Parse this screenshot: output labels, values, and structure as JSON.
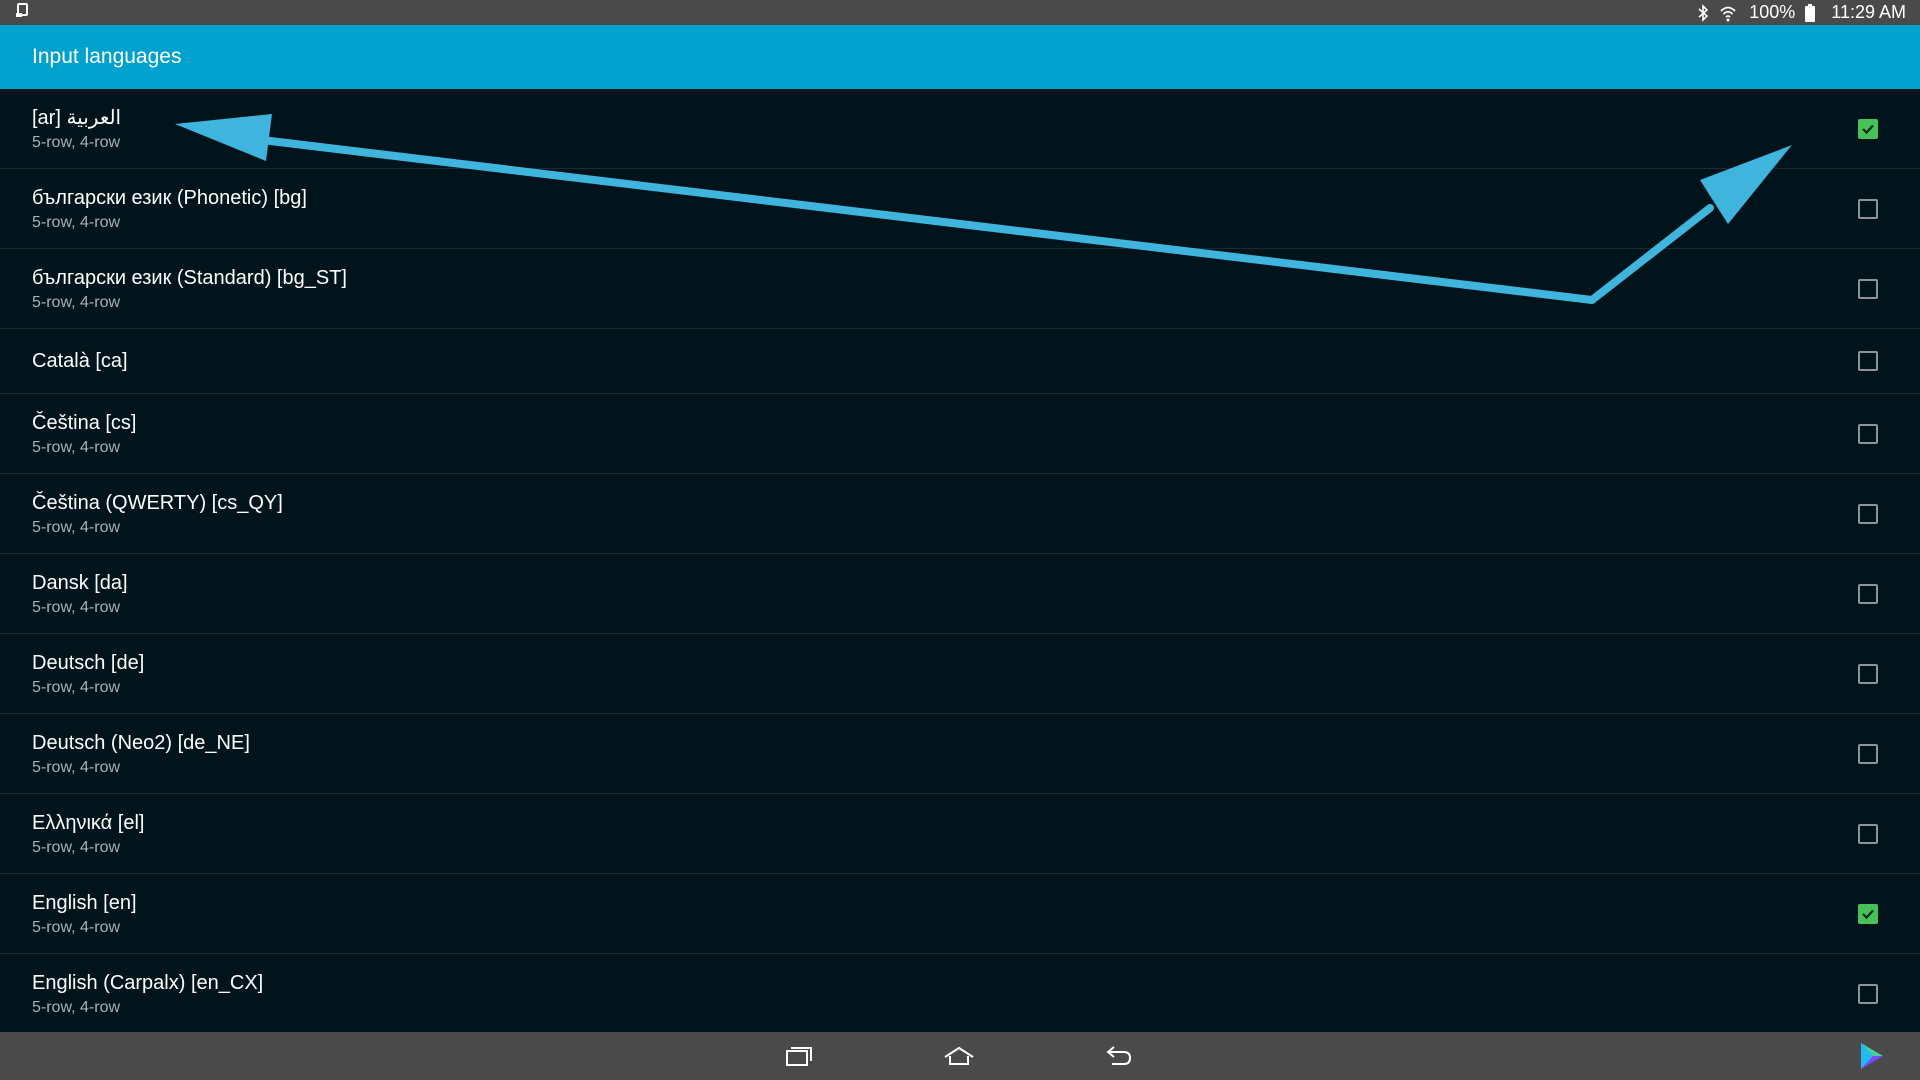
{
  "status_bar": {
    "battery_percent": "100%",
    "time": "11:29 AM",
    "icons": [
      "notification-icon",
      "bluetooth-icon",
      "wifi-icon",
      "battery-icon"
    ]
  },
  "app_bar": {
    "title": "Input languages"
  },
  "languages": [
    {
      "title": "[ar] العربية",
      "subtitle": "5-row, 4-row",
      "checked": true
    },
    {
      "title": "български език (Phonetic) [bg]",
      "subtitle": "5-row, 4-row",
      "checked": false
    },
    {
      "title": "български език (Standard) [bg_ST]",
      "subtitle": "5-row, 4-row",
      "checked": false
    },
    {
      "title": "Català [ca]",
      "subtitle": "",
      "checked": false
    },
    {
      "title": "Čeština [cs]",
      "subtitle": "5-row, 4-row",
      "checked": false
    },
    {
      "title": "Čeština (QWERTY) [cs_QY]",
      "subtitle": "5-row, 4-row",
      "checked": false
    },
    {
      "title": "Dansk [da]",
      "subtitle": "5-row, 4-row",
      "checked": false
    },
    {
      "title": "Deutsch [de]",
      "subtitle": "5-row, 4-row",
      "checked": false
    },
    {
      "title": "Deutsch (Neo2) [de_NE]",
      "subtitle": "5-row, 4-row",
      "checked": false
    },
    {
      "title": "Ελληνικά [el]",
      "subtitle": "5-row, 4-row",
      "checked": false
    },
    {
      "title": "English [en]",
      "subtitle": "5-row, 4-row",
      "checked": true
    },
    {
      "title": "English (Carpalx) [en_CX]",
      "subtitle": "5-row, 4-row",
      "checked": false
    }
  ],
  "nav_bar": {
    "icons": [
      "recent-apps-icon",
      "home-icon",
      "back-icon",
      "play-store-icon"
    ]
  },
  "colors": {
    "accent": "#00a1cd",
    "background": "#01141c",
    "check_green": "#47c15a",
    "annotation_arrow": "#3fb4dc"
  }
}
